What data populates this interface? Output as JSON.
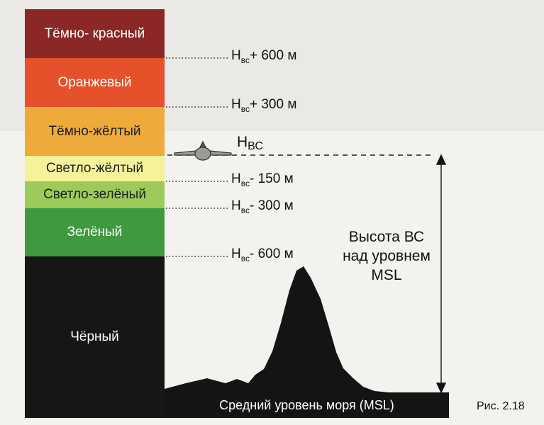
{
  "bands": [
    {
      "label": "Тёмно- красный",
      "color": "#8b2727"
    },
    {
      "label": "Оранжевый",
      "color": "#e4512a"
    },
    {
      "label": "Тёмно-жёлтый",
      "color": "#eeab3c"
    },
    {
      "label": "Светло-жёлтый",
      "color": "#f5f29a"
    },
    {
      "label": "Светло-зелёный",
      "color": "#9ccb5a"
    },
    {
      "label": "Зелёный",
      "color": "#3f9a3f"
    },
    {
      "label": "Чёрный",
      "color": "#161616"
    }
  ],
  "levels": [
    {
      "h": "H",
      "sub": "вс",
      "rest": "+ 600 м"
    },
    {
      "h": "H",
      "sub": "вс",
      "rest": "+ 300 м"
    },
    {
      "h": "H",
      "sub": "вс",
      "rest": "- 150 м"
    },
    {
      "h": "H",
      "sub": "вс",
      "rest": "- 300 м"
    },
    {
      "h": "H",
      "sub": "вс",
      "rest": "- 600 м"
    }
  ],
  "aircraft_level": {
    "h": "H",
    "sub": "ВС"
  },
  "altitude_label": [
    "Высота ВС",
    "над уровнем",
    "MSL"
  ],
  "msl_label": "Средний уровень моря (MSL)",
  "figure_label": "Рис. 2.18",
  "icons": [
    "aircraft-icon",
    "terrain-silhouette",
    "double-arrow"
  ]
}
